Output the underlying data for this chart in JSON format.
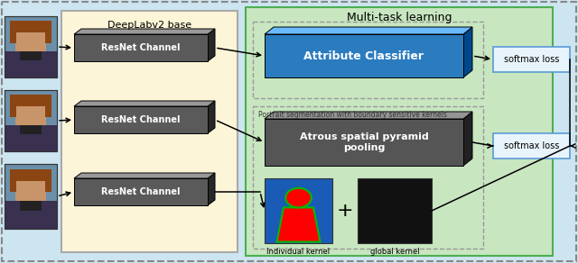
{
  "bg_color": "#cce5f0",
  "deeplab_bg": "#fdf5d8",
  "multitask_bg": "#c8e6c0",
  "multitask_border": "#4caf50",
  "title_multitask": "Multi-task learning",
  "title_deeplab": "DeepLabv2 base",
  "resnet_color": "#5a5a5a",
  "resnet_color_light": "#888888",
  "resnet_color_dark": "#3a3a3a",
  "attr_color": "#2b7bbf",
  "attr_color_light": "#5ba0df",
  "attr_color_dark": "#1a5a8f",
  "attr_label": "Attribute Classifier",
  "aspp_color": "#555555",
  "aspp_color_light": "#888888",
  "aspp_color_dark": "#333333",
  "aspp_label": "Atrous spatial pyramid\npooling",
  "softmax_label": "softmax loss",
  "softmax_color": "#e8f4fb",
  "softmax_border": "#5b9bd5",
  "kernel_label1": "Individual kernel",
  "kernel_label2": "global kernel",
  "seg_label": "Portrait segmentation with boundary sensitive kernels",
  "outer_border": "#888888",
  "dashed_border": "#999999"
}
